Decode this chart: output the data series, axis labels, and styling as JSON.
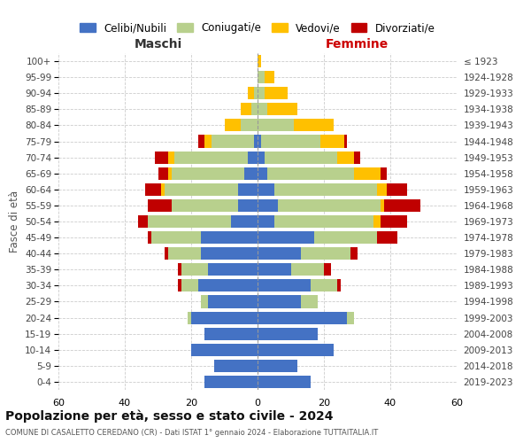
{
  "age_groups": [
    "0-4",
    "5-9",
    "10-14",
    "15-19",
    "20-24",
    "25-29",
    "30-34",
    "35-39",
    "40-44",
    "45-49",
    "50-54",
    "55-59",
    "60-64",
    "65-69",
    "70-74",
    "75-79",
    "80-84",
    "85-89",
    "90-94",
    "95-99",
    "100+"
  ],
  "birth_years": [
    "2019-2023",
    "2014-2018",
    "2009-2013",
    "2004-2008",
    "1999-2003",
    "1994-1998",
    "1989-1993",
    "1984-1988",
    "1979-1983",
    "1974-1978",
    "1969-1973",
    "1964-1968",
    "1959-1963",
    "1954-1958",
    "1949-1953",
    "1944-1948",
    "1939-1943",
    "1934-1938",
    "1929-1933",
    "1924-1928",
    "≤ 1923"
  ],
  "male": {
    "celibi": [
      16,
      13,
      20,
      16,
      20,
      15,
      18,
      15,
      17,
      17,
      8,
      6,
      6,
      4,
      3,
      1,
      0,
      0,
      0,
      0,
      0
    ],
    "coniugati": [
      0,
      0,
      0,
      0,
      1,
      2,
      5,
      8,
      10,
      15,
      25,
      20,
      22,
      22,
      22,
      13,
      5,
      2,
      1,
      0,
      0
    ],
    "vedovi": [
      0,
      0,
      0,
      0,
      0,
      0,
      0,
      0,
      0,
      0,
      0,
      0,
      1,
      1,
      2,
      2,
      5,
      3,
      2,
      0,
      0
    ],
    "divorziati": [
      0,
      0,
      0,
      0,
      0,
      0,
      1,
      1,
      1,
      1,
      3,
      7,
      5,
      3,
      4,
      2,
      0,
      0,
      0,
      0,
      0
    ]
  },
  "female": {
    "nubili": [
      16,
      12,
      23,
      18,
      27,
      13,
      16,
      10,
      13,
      17,
      5,
      6,
      5,
      3,
      2,
      1,
      0,
      0,
      0,
      0,
      0
    ],
    "coniugate": [
      0,
      0,
      0,
      0,
      2,
      5,
      8,
      10,
      15,
      19,
      30,
      31,
      31,
      26,
      22,
      18,
      11,
      3,
      2,
      2,
      0
    ],
    "vedove": [
      0,
      0,
      0,
      0,
      0,
      0,
      0,
      0,
      0,
      0,
      2,
      1,
      3,
      8,
      5,
      7,
      12,
      9,
      7,
      3,
      1
    ],
    "divorziate": [
      0,
      0,
      0,
      0,
      0,
      0,
      1,
      2,
      2,
      6,
      8,
      11,
      6,
      2,
      2,
      1,
      0,
      0,
      0,
      0,
      0
    ]
  },
  "colors": {
    "celibi_nubili": "#4472c4",
    "coniugati": "#b8d08d",
    "vedovi": "#ffc000",
    "divorziati": "#c00000"
  },
  "xlim": 60,
  "title": "Popolazione per età, sesso e stato civile - 2024",
  "subtitle": "COMUNE DI CASALETTO CEREDANO (CR) - Dati ISTAT 1° gennaio 2024 - Elaborazione TUTTAITALIA.IT",
  "xlabel_left": "Maschi",
  "xlabel_right": "Femmine",
  "ylabel": "Fasce di età",
  "legend_labels": [
    "Celibi/Nubili",
    "Coniugati/e",
    "Vedovi/e",
    "Divorziati/e"
  ]
}
